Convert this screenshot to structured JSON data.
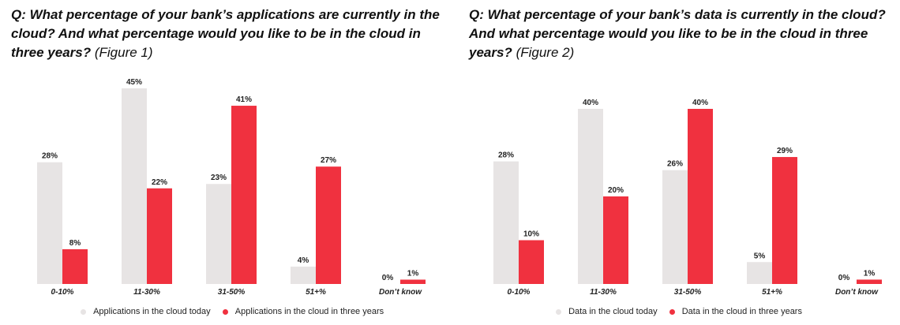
{
  "colors": {
    "today": "#e7e4e4",
    "three_years": "#f0313f"
  },
  "chart_data": [
    {
      "type": "bar",
      "question": "Q: What percentage of your bank’s applications are currently in the cloud? And what percentage would you like to be in the cloud in three years?",
      "figure": "(Figure 1)",
      "categories": [
        "0-10%",
        "11-30%",
        "31-50%",
        "51+%",
        "Don’t know"
      ],
      "series": [
        {
          "name": "Applications in the cloud today",
          "values": [
            28,
            45,
            23,
            4,
            0
          ]
        },
        {
          "name": "Applications in the cloud in three years",
          "values": [
            8,
            22,
            41,
            27,
            1
          ]
        }
      ],
      "ylim": [
        0,
        45
      ],
      "legend": "bottom"
    },
    {
      "type": "bar",
      "question": "Q: What percentage of your bank’s data is currently in the cloud? And what percentage would you like to be in the cloud in three years?",
      "figure": "(Figure 2)",
      "categories": [
        "0-10%",
        "11-30%",
        "31-50%",
        "51+%",
        "Don’t know"
      ],
      "series": [
        {
          "name": "Data in the cloud today",
          "values": [
            28,
            40,
            26,
            5,
            0
          ]
        },
        {
          "name": "Data in the cloud in three years",
          "values": [
            10,
            20,
            40,
            29,
            1
          ]
        }
      ],
      "ylim": [
        0,
        40
      ],
      "legend": "bottom"
    }
  ]
}
